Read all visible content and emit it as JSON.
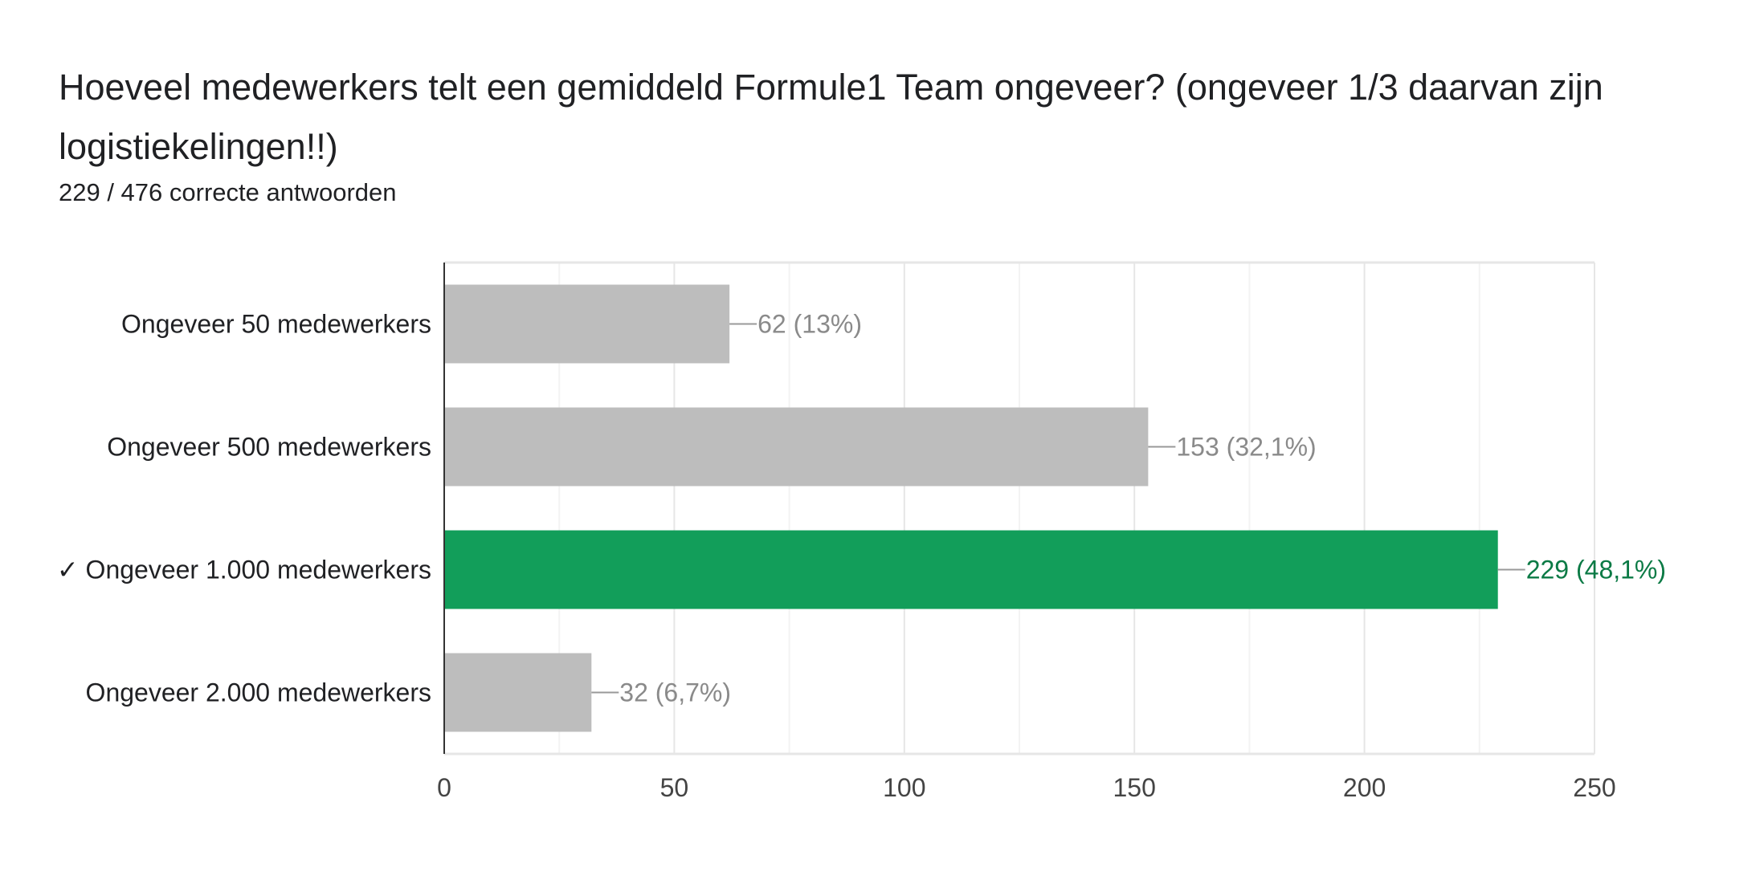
{
  "chart_data": {
    "type": "bar",
    "orientation": "horizontal",
    "title": "Hoeveel medewerkers telt een gemiddeld Formule1 Team ongeveer? (ongeveer 1/3 daarvan zijn logistiekelingen!!)",
    "subtitle": "229 / 476 correcte antwoorden",
    "categories": [
      "Ongeveer 50 medewerkers",
      "Ongeveer 500 medewerkers",
      "✓ Ongeveer 1.000 medewerkers",
      "Ongeveer 2.000 medewerkers"
    ],
    "values": [
      62,
      153,
      229,
      32
    ],
    "data_labels": [
      "62 (13%)",
      "153 (32,1%)",
      "229 (48,1%)",
      "32 (6,7%)"
    ],
    "correct_index": 2,
    "xlim": [
      0,
      250
    ],
    "xticks": [
      0,
      50,
      100,
      150,
      200,
      250
    ],
    "xtick_labels": [
      "0",
      "50",
      "100",
      "150",
      "200",
      "250"
    ],
    "grid": true,
    "colors": {
      "bar": "#bdbdbd",
      "correct_bar": "#129e5a",
      "label": "#8a8a8a",
      "correct_label": "#0b7a45"
    }
  }
}
